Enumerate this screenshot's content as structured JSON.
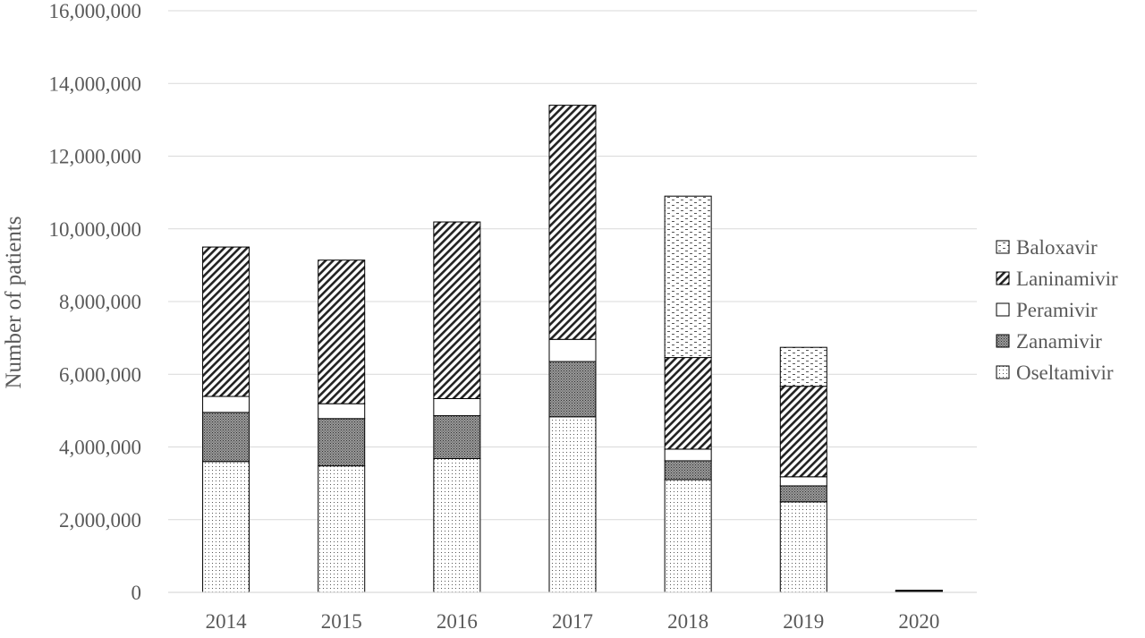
{
  "chart_data": {
    "type": "bar",
    "stacked": true,
    "categories": [
      "2014",
      "2015",
      "2016",
      "2017",
      "2018",
      "2019",
      "2020"
    ],
    "series": [
      {
        "name": "Oseltamivir",
        "pattern": "dots",
        "values": [
          3600000,
          3480000,
          3680000,
          4830000,
          3100000,
          2490000,
          15000
        ]
      },
      {
        "name": "Zanamivir",
        "pattern": "dense",
        "values": [
          1350000,
          1300000,
          1180000,
          1520000,
          520000,
          440000,
          5000
        ]
      },
      {
        "name": "Peramivir",
        "pattern": "white",
        "values": [
          440000,
          410000,
          470000,
          610000,
          320000,
          250000,
          3000
        ]
      },
      {
        "name": "Laninamivir",
        "pattern": "hatch",
        "values": [
          4110000,
          3950000,
          4860000,
          6440000,
          2520000,
          2490000,
          10000
        ]
      },
      {
        "name": "Baloxavir",
        "pattern": "dashes",
        "values": [
          0,
          0,
          0,
          0,
          4440000,
          1070000,
          7000
        ]
      }
    ],
    "legend_order": [
      "Baloxavir",
      "Laninamivir",
      "Peramivir",
      "Zanamivir",
      "Oseltamivir"
    ],
    "title": "",
    "xlabel": "",
    "ylabel": "Number of patients",
    "ylim": [
      0,
      16000000
    ],
    "yticks": [
      0,
      2000000,
      4000000,
      6000000,
      8000000,
      10000000,
      12000000,
      14000000,
      16000000
    ],
    "ytick_labels": [
      "0",
      "2,000,000",
      "4,000,000",
      "6,000,000",
      "8,000,000",
      "10,000,000",
      "12,000,000",
      "14,000,000",
      "16,000,000"
    ],
    "grid": true,
    "legend_position": "right"
  }
}
